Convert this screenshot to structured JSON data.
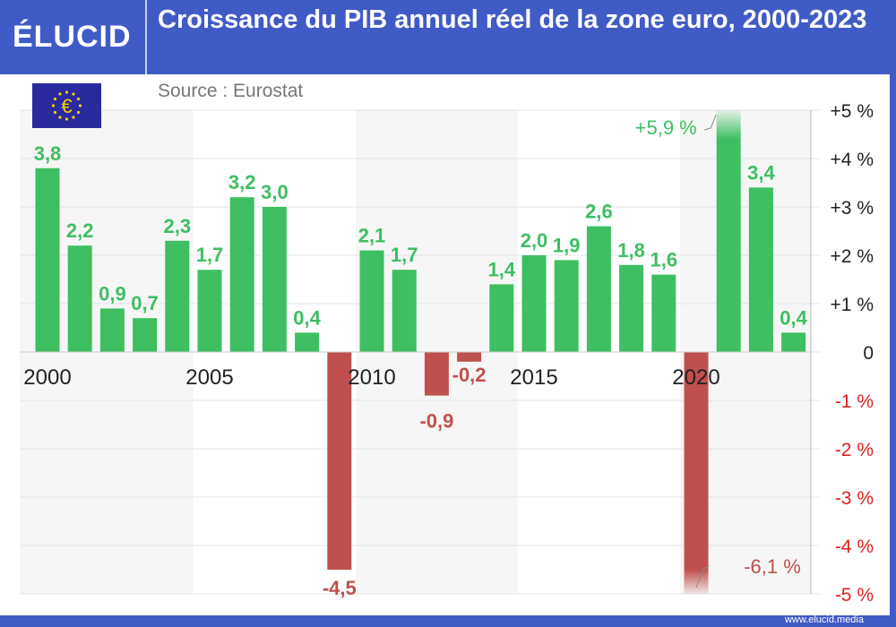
{
  "header": {
    "logo": "ÉLUCID",
    "title": "Croissance du PIB annuel réel de la zone euro, 2000-2023"
  },
  "source": "Source : Eurostat",
  "footer": "www.elucid.media",
  "colors": {
    "frame": "#3f5bc6",
    "positive": "#3dbf62",
    "negative": "#c0504d",
    "axis_negative": "#e02020"
  },
  "icons": {
    "flag": "eu-flag-euro-icon"
  },
  "chart_data": {
    "type": "bar",
    "title": "Croissance du PIB annuel réel de la zone euro, 2000-2023",
    "categories": [
      2000,
      2001,
      2002,
      2003,
      2004,
      2005,
      2006,
      2007,
      2008,
      2009,
      2010,
      2011,
      2012,
      2013,
      2014,
      2015,
      2016,
      2017,
      2018,
      2019,
      2020,
      2021,
      2022,
      2023
    ],
    "values": [
      3.8,
      2.2,
      0.9,
      0.7,
      2.3,
      1.7,
      3.2,
      3.0,
      0.4,
      -4.5,
      2.1,
      1.7,
      -0.9,
      -0.2,
      1.4,
      2.0,
      1.9,
      2.6,
      1.8,
      1.6,
      -6.1,
      5.9,
      3.4,
      0.4
    ],
    "data_labels": [
      "3,8",
      "2,2",
      "0,9",
      "0,7",
      "2,3",
      "1,7",
      "3,2",
      "3,0",
      "0,4",
      "-4,5",
      "2,1",
      "1,7",
      "-0,9",
      "-0,2",
      "1,4",
      "2,0",
      "1,9",
      "2,6",
      "1,8",
      "1,6",
      "-6,1 %",
      "+5,9 %",
      "3,4",
      "0,4"
    ],
    "ylim": [
      -5,
      5
    ],
    "y_ticks": [
      5,
      4,
      3,
      2,
      1,
      0,
      -1,
      -2,
      -3,
      -4,
      -5
    ],
    "y_tick_labels": [
      "+5 %",
      "+4 %",
      "+3 %",
      "+2 %",
      "+1 %",
      "0",
      "-1 %",
      "-2 %",
      "-3 %",
      "-4 %",
      "-5 %"
    ],
    "x_tick_labels": [
      "2000",
      "2005",
      "2010",
      "2015",
      "2020"
    ],
    "x_tick_years": [
      2000,
      2005,
      2010,
      2015,
      2020
    ],
    "grid": true,
    "y_axis_position": "right"
  }
}
